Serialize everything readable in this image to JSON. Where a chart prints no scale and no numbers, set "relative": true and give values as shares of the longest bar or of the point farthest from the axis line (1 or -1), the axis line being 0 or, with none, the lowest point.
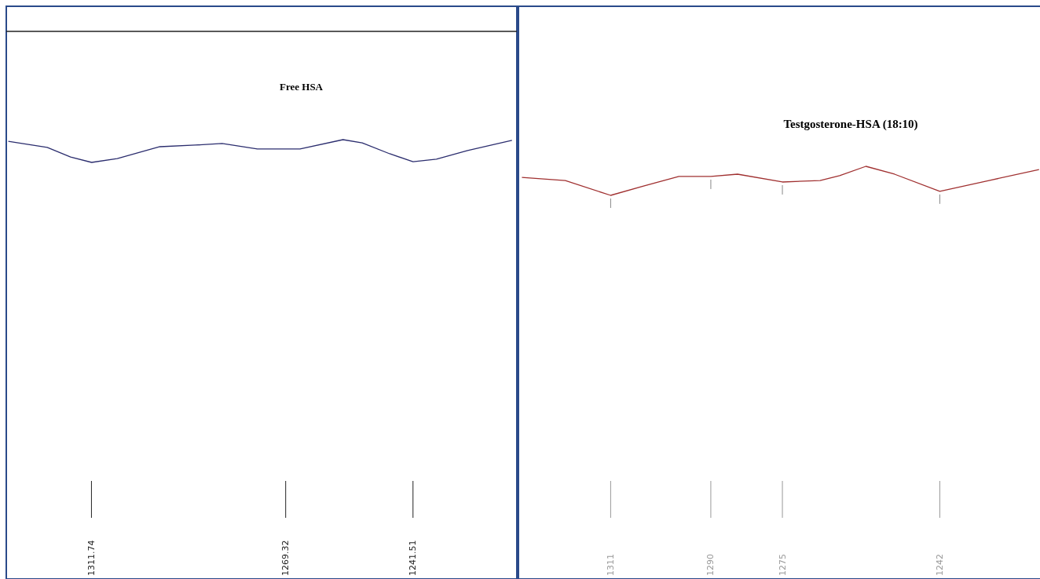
{
  "chart_data": [
    {
      "type": "line",
      "title": "Free HSA",
      "relative": true,
      "xlim": [
        1330,
        1219
      ],
      "xticks": [
        1311.74,
        1269.32,
        1241.51
      ],
      "line_style": "solid",
      "series": [
        {
          "color": "#2b2d6e",
          "x": [
            1329.9,
            1321.4,
            1316.3,
            1311.7,
            1306.1,
            1296.8,
            1289.1,
            1283.2,
            1275.5,
            1266.2,
            1256.8,
            1252.6,
            1246.6,
            1241.5,
            1236.4,
            1229.6,
            1219.9
          ],
          "values": [
            0.93,
            0.66,
            0.24,
            0,
            0.17,
            0.69,
            0.76,
            0.83,
            0.59,
            0.59,
            1,
            0.86,
            0.38,
            0.03,
            0.14,
            0.52,
            0.97
          ]
        }
      ]
    },
    {
      "type": "line",
      "title": "Testgosterone-HSA (18:10)",
      "relative": true,
      "xlim": [
        1330,
        1221
      ],
      "xticks": [
        1311,
        1290,
        1275,
        1242
      ],
      "line_style": "solid",
      "series": [
        {
          "color": "#a03030",
          "x": [
            1329.6,
            1320.5,
            1311,
            1304.1,
            1296.7,
            1290,
            1284.4,
            1275,
            1267.1,
            1263,
            1257.5,
            1251.5,
            1242,
            1231.7,
            1221.2
          ],
          "values": [
            0.62,
            0.51,
            0,
            0.32,
            0.65,
            0.65,
            0.73,
            0.46,
            0.51,
            0.68,
            1,
            0.73,
            0.14,
            0.51,
            0.89
          ]
        }
      ]
    }
  ]
}
